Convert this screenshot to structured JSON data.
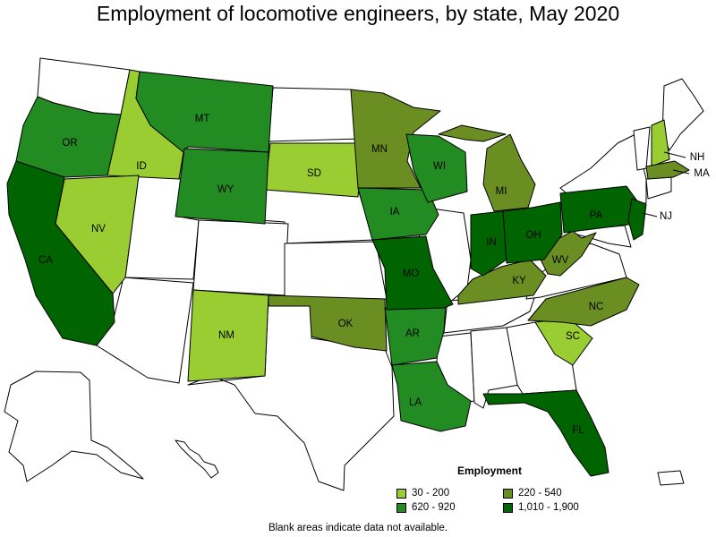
{
  "title": "Employment of locomotive engineers, by state, May 2020",
  "legend": {
    "title": "Employment",
    "items": [
      {
        "label": "30 - 200",
        "color": "#9acd32"
      },
      {
        "label": "220 - 540",
        "color": "#6b8e23"
      },
      {
        "label": "620 - 920",
        "color": "#228b22"
      },
      {
        "label": "1,010 - 1,900",
        "color": "#006400"
      }
    ]
  },
  "footnote": "Blank areas indicate data not available.",
  "states": [
    {
      "abbr": "ID",
      "bin": 0
    },
    {
      "abbr": "NV",
      "bin": 0
    },
    {
      "abbr": "SD",
      "bin": 0
    },
    {
      "abbr": "NM",
      "bin": 0
    },
    {
      "abbr": "SC",
      "bin": 0
    },
    {
      "abbr": "NH",
      "bin": 0
    },
    {
      "abbr": "MN",
      "bin": 1
    },
    {
      "abbr": "MI",
      "bin": 1
    },
    {
      "abbr": "OK",
      "bin": 1
    },
    {
      "abbr": "KY",
      "bin": 1
    },
    {
      "abbr": "WV",
      "bin": 1
    },
    {
      "abbr": "NC",
      "bin": 1
    },
    {
      "abbr": "MA",
      "bin": 1
    },
    {
      "abbr": "OR",
      "bin": 2
    },
    {
      "abbr": "MT",
      "bin": 2
    },
    {
      "abbr": "WY",
      "bin": 2
    },
    {
      "abbr": "IA",
      "bin": 2
    },
    {
      "abbr": "WI",
      "bin": 2
    },
    {
      "abbr": "AR",
      "bin": 2
    },
    {
      "abbr": "LA",
      "bin": 2
    },
    {
      "abbr": "CA",
      "bin": 3
    },
    {
      "abbr": "MO",
      "bin": 3
    },
    {
      "abbr": "IN",
      "bin": 3
    },
    {
      "abbr": "OH",
      "bin": 3
    },
    {
      "abbr": "PA",
      "bin": 3
    },
    {
      "abbr": "NJ",
      "bin": 3
    },
    {
      "abbr": "FL",
      "bin": 3
    }
  ]
}
